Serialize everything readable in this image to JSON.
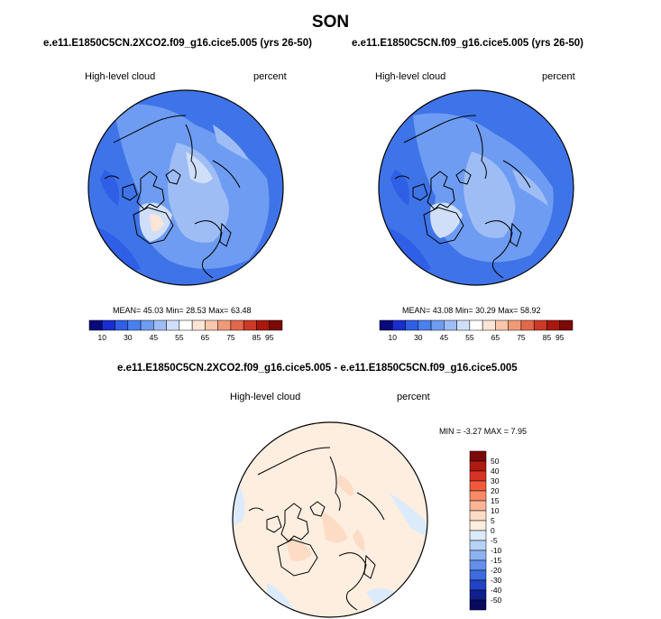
{
  "title": "SON",
  "panels": [
    {
      "case": "e.e11.E1850C5CN.2XCO2.f09_g16.cice5.005 (yrs 26-50)",
      "left_label": "High-level cloud",
      "right_label": "percent",
      "mean_label": "MEAN=",
      "mean": "45.03",
      "min_label": "Min=",
      "min": "28.53",
      "max_label": "Max=",
      "max": "63.48"
    },
    {
      "case": "e.e11.E1850C5CN.f09_g16.cice5.005 (yrs 26-50)",
      "left_label": "High-level cloud",
      "right_label": "percent",
      "mean_label": "MEAN=",
      "mean": "43.08",
      "min_label": "Min=",
      "min": "30.29",
      "max_label": "Max=",
      "max": "58.92"
    }
  ],
  "abs_colorbar": {
    "colors": [
      "#0a0a7a",
      "#1a2ed0",
      "#2f5fe6",
      "#4a7ff0",
      "#6e9cf2",
      "#9fbdf5",
      "#cfdff9",
      "#ffffff",
      "#fce4d6",
      "#f8c6aa",
      "#f09a78",
      "#e2684c",
      "#cc3a26",
      "#a8180e",
      "#7a0a08"
    ],
    "tick_labels": [
      "10",
      "30",
      "45",
      "55",
      "65",
      "75",
      "85",
      "95"
    ]
  },
  "diff_panel": {
    "case": "e.e11.E1850C5CN.2XCO2.f09_g16.cice5.005 - e.e11.E1850C5CN.f09_g16.cice5.005",
    "left_label": "High-level cloud",
    "right_label": "percent",
    "stats": "MIN = -3.27 MAX =  7.95"
  },
  "diff_colorbar": {
    "colors": [
      "#7a0a08",
      "#b01a10",
      "#d83222",
      "#f05a3a",
      "#f88a68",
      "#fbb496",
      "#fddcc6",
      "#fdeee0",
      "#dcebfb",
      "#b8d2f6",
      "#8cb2f0",
      "#6290ea",
      "#3c6ae0",
      "#2244c4",
      "#10208e",
      "#080a5e"
    ],
    "tick_labels": [
      "50",
      "40",
      "30",
      "20",
      "15",
      "10",
      "5",
      "0",
      "-5",
      "-10",
      "-15",
      "-20",
      "-30",
      "-40",
      "-50"
    ]
  }
}
